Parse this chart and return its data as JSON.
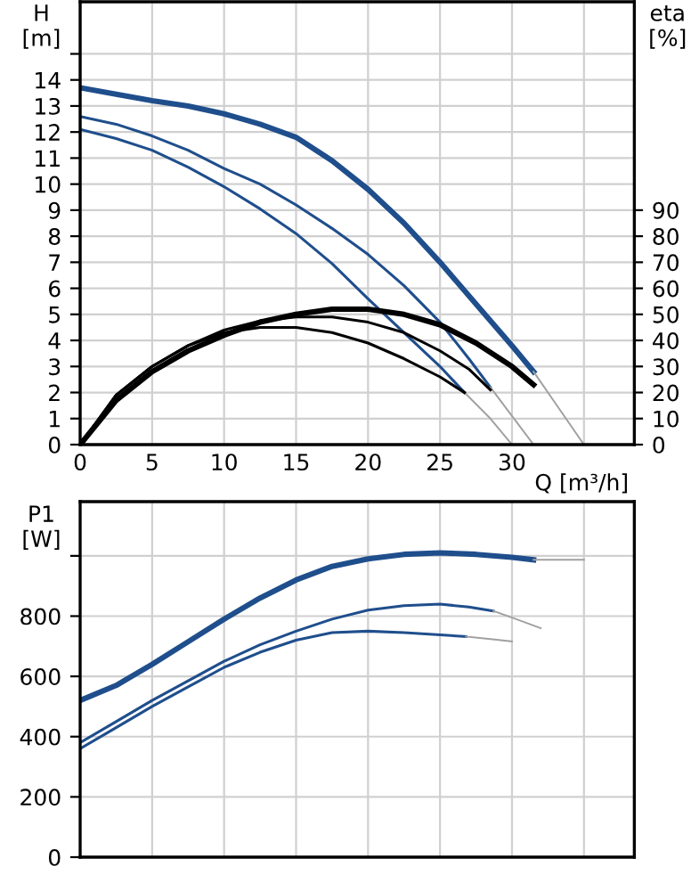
{
  "chart_data": [
    {
      "type": "line",
      "xlabel": "Q [m³/h]",
      "ylabel": "H\n[m]",
      "y2label": "eta\n[%]",
      "xlim": [
        0,
        38.5
      ],
      "xticks": [
        0,
        5,
        10,
        15,
        20,
        25,
        30,
        {
          "value": 35,
          "label": null
        }
      ],
      "ylim": [
        0,
        17
      ],
      "yticks": [
        0,
        1,
        2,
        3,
        4,
        5,
        6,
        7,
        8,
        9,
        10,
        11,
        12,
        13,
        14,
        {
          "value": 15,
          "label": null
        }
      ],
      "y2lim": [
        0,
        170
      ],
      "y2ticks": [
        0,
        10,
        20,
        30,
        40,
        50,
        60,
        70,
        80,
        90
      ],
      "grid": true,
      "marker": "none",
      "line_style": "solid",
      "series": [
        {
          "color": "#1f4e8c",
          "x": [
            0,
            2.5,
            5,
            7.5,
            10,
            12.5,
            15,
            17.5,
            20,
            22.5,
            25,
            27.5,
            30,
            31.5
          ],
          "values": [
            13.7,
            13.45,
            13.2,
            13.0,
            12.7,
            12.3,
            11.8,
            10.9,
            9.8,
            8.5,
            7.0,
            5.4,
            3.8,
            2.8
          ]
        },
        {
          "color": "#1f4e8c",
          "x": [
            0,
            2.5,
            5,
            7.5,
            10,
            12.5,
            15,
            17.5,
            20,
            22.5,
            25,
            27,
            28.5
          ],
          "values": [
            12.6,
            12.3,
            11.85,
            11.3,
            10.6,
            10.0,
            9.2,
            8.3,
            7.3,
            6.1,
            4.7,
            3.3,
            2.2
          ]
        },
        {
          "color": "#1f4e8c",
          "x": [
            0,
            2.5,
            5,
            7.5,
            10,
            12.5,
            15,
            17.5,
            20,
            22.5,
            25,
            26.7
          ],
          "values": [
            12.1,
            11.75,
            11.3,
            10.65,
            9.9,
            9.05,
            8.1,
            6.95,
            5.6,
            4.3,
            3.0,
            2.0
          ]
        },
        {
          "color": "#a0a0a0",
          "x": [
            31.5,
            33,
            35
          ],
          "values": [
            2.8,
            1.6,
            0
          ]
        },
        {
          "color": "#a0a0a0",
          "x": [
            28.5,
            30,
            31.5
          ],
          "values": [
            2.2,
            1.1,
            0
          ]
        },
        {
          "color": "#a0a0a0",
          "x": [
            26.7,
            28.5,
            30
          ],
          "values": [
            2.0,
            1.0,
            0
          ]
        },
        {
          "color": "#000000",
          "axis": "y2",
          "x": [
            0,
            2.5,
            5,
            7.5,
            10,
            12.5,
            15,
            17.5,
            20,
            22.5,
            25,
            27.5,
            30,
            31.5
          ],
          "values": [
            0,
            17,
            28,
            36,
            42,
            47,
            50,
            52,
            52,
            50,
            46,
            39,
            30,
            23
          ]
        },
        {
          "color": "#000000",
          "axis": "y2",
          "x": [
            0,
            2.5,
            5,
            7.5,
            10,
            12.5,
            15,
            17.5,
            20,
            22.5,
            25,
            27,
            28.5
          ],
          "values": [
            0,
            19,
            30,
            38,
            44,
            47.5,
            49,
            49,
            47,
            43,
            36,
            29,
            21
          ]
        },
        {
          "color": "#000000",
          "axis": "y2",
          "x": [
            0,
            2.5,
            5,
            7.5,
            10,
            12.5,
            15,
            17.5,
            20,
            22.5,
            25,
            26.7
          ],
          "values": [
            0,
            19,
            30,
            38,
            43,
            45,
            45,
            43,
            39,
            33,
            26,
            20
          ]
        }
      ]
    },
    {
      "type": "line",
      "ylabel": "P1\n[W]",
      "tick_labels": "y",
      "xlim": [
        0,
        38.5
      ],
      "xticks": [
        0,
        5,
        10,
        15,
        20,
        25,
        30,
        35
      ],
      "ylim": [
        0,
        1180
      ],
      "yticks": [
        0,
        200,
        400,
        600,
        800,
        {
          "value": 1000,
          "label": null
        }
      ],
      "grid": true,
      "marker": "none",
      "line_style": "solid",
      "series": [
        {
          "color": "#1f4e8c",
          "x": [
            0,
            2.5,
            5,
            7.5,
            10,
            12.5,
            15,
            17.5,
            20,
            22.5,
            25,
            27.5,
            30,
            31.5
          ],
          "values": [
            520,
            570,
            640,
            715,
            790,
            860,
            920,
            965,
            990,
            1005,
            1010,
            1005,
            995,
            987
          ]
        },
        {
          "color": "#1f4e8c",
          "x": [
            0,
            2.5,
            5,
            7.5,
            10,
            12.5,
            15,
            17.5,
            20,
            22.5,
            25,
            27,
            28.7
          ],
          "values": [
            380,
            450,
            520,
            585,
            650,
            705,
            750,
            790,
            820,
            835,
            840,
            830,
            817
          ]
        },
        {
          "color": "#1f4e8c",
          "x": [
            0,
            2.5,
            5,
            7.5,
            10,
            12.5,
            15,
            17.5,
            20,
            22.5,
            25,
            26.8
          ],
          "values": [
            360,
            430,
            500,
            565,
            630,
            680,
            720,
            745,
            750,
            745,
            738,
            732
          ]
        },
        {
          "color": "#a0a0a0",
          "x": [
            31.5,
            33,
            35
          ],
          "values": [
            987,
            987,
            987
          ]
        },
        {
          "color": "#a0a0a0",
          "x": [
            28.7,
            30,
            32
          ],
          "values": [
            817,
            795,
            760
          ]
        },
        {
          "color": "#a0a0a0",
          "x": [
            26.8,
            28.5,
            30
          ],
          "values": [
            732,
            724,
            716
          ]
        }
      ]
    }
  ]
}
